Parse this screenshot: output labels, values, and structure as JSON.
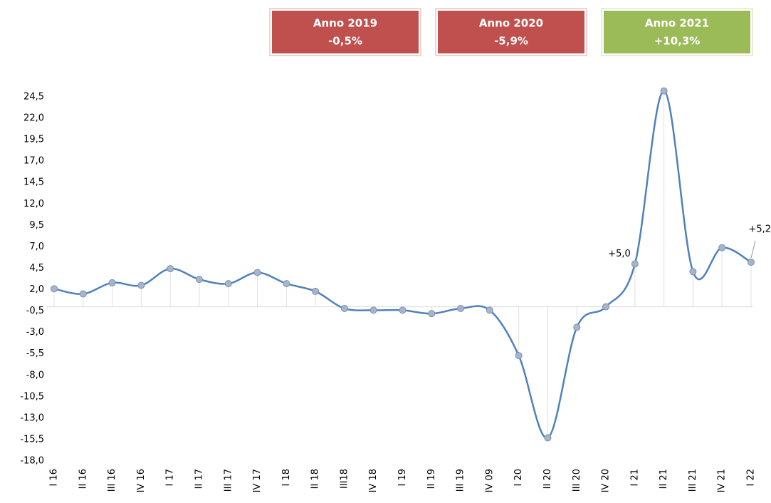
{
  "chart_data": {
    "type": "line",
    "categories": [
      "I 16",
      "II 16",
      "III 16",
      "IV 16",
      "I 17",
      "II 17",
      "III 17",
      "IV 17",
      "I 18",
      "II 18",
      "III18",
      "IV 18",
      "I 19",
      "II 19",
      "III 19",
      "IV 09",
      "I 20",
      "II 20",
      "III 20",
      "IV 20",
      "I 21",
      "II 21",
      "III 21",
      "IV 21",
      "I 22"
    ],
    "series": [
      {
        "color": "#4f81bd",
        "values": [
          2.1,
          1.5,
          2.8,
          2.5,
          4.45,
          3.2,
          2.7,
          4.0,
          2.7,
          1.8,
          -0.2,
          -0.4,
          -0.4,
          -0.8,
          -0.2,
          -0.4,
          -5.7,
          -15.3,
          -2.4,
          0.0,
          5.0,
          25.2,
          4.1,
          6.9,
          5.2
        ],
        "value_labels": [
          null,
          null,
          null,
          null,
          null,
          null,
          null,
          null,
          null,
          null,
          null,
          null,
          null,
          null,
          null,
          null,
          null,
          null,
          null,
          null,
          "+5,0",
          null,
          null,
          null,
          "+5,2"
        ]
      }
    ],
    "ylim": [
      -18,
      24.5
    ],
    "yticks": [
      {
        "value": 24.5,
        "label": "24,5"
      },
      {
        "value": 22,
        "label": "22,0"
      },
      {
        "value": 19.5,
        "label": "19,5"
      },
      {
        "value": 17,
        "label": "17,0"
      },
      {
        "value": 14.5,
        "label": "14,5"
      },
      {
        "value": 12,
        "label": "12,0"
      },
      {
        "value": 9.5,
        "label": "9,5"
      },
      {
        "value": 7,
        "label": "7,0"
      },
      {
        "value": 4.5,
        "label": "4,5"
      },
      {
        "value": 2,
        "label": "2,0"
      },
      {
        "value": -0.5,
        "label": "-0,5"
      },
      {
        "value": -3,
        "label": "-3,0"
      },
      {
        "value": -5.5,
        "label": "-5,5"
      },
      {
        "value": -8,
        "label": "-8,0"
      },
      {
        "value": -10.5,
        "label": "-10,5"
      },
      {
        "value": -13,
        "label": "-13,0"
      },
      {
        "value": -15.5,
        "label": "-15,5"
      },
      {
        "value": -18,
        "label": "-18,0"
      }
    ],
    "annotations": [
      {
        "title": "Anno 2019",
        "value": "-0,5%",
        "color": "#c0504d"
      },
      {
        "title": "Anno 2020",
        "value": "-5,9%",
        "color": "#c0504d"
      },
      {
        "title": "Anno 2021",
        "value": "+10,3%",
        "color": "#9bbb59"
      }
    ]
  }
}
